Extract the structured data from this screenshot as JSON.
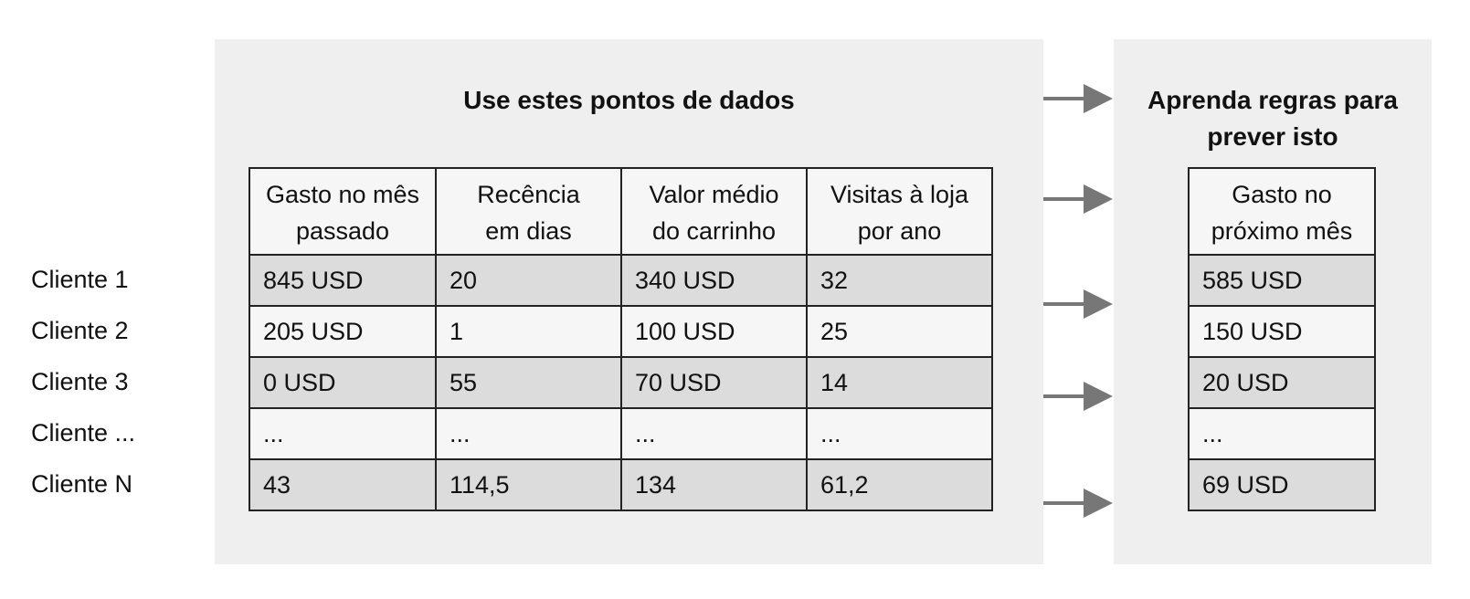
{
  "row_labels": [
    "Cliente 1",
    "Cliente 2",
    "Cliente 3",
    "Cliente ...",
    "Cliente N"
  ],
  "input_panel": {
    "title": "Use estes pontos de dados",
    "table": {
      "headers": [
        [
          "Gasto no mês",
          "passado"
        ],
        [
          "Recência",
          "em dias"
        ],
        [
          "Valor médio",
          "do carrinho"
        ],
        [
          "Visitas à loja",
          "por ano"
        ]
      ],
      "rows": [
        [
          "845 USD",
          "20",
          "340 USD",
          "32"
        ],
        [
          "205 USD",
          "1",
          "100 USD",
          "25"
        ],
        [
          "0 USD",
          "55",
          "70 USD",
          "14"
        ],
        [
          "...",
          "...",
          "...",
          "..."
        ],
        [
          "43",
          "114,5",
          "134",
          "61,2"
        ]
      ]
    }
  },
  "output_panel": {
    "title": [
      "Aprenda regras para",
      "prever isto"
    ],
    "table": {
      "header": [
        "Gasto no",
        "próximo mês"
      ],
      "rows": [
        "585 USD",
        "150 USD",
        "20 USD",
        "...",
        "69 USD"
      ]
    }
  }
}
